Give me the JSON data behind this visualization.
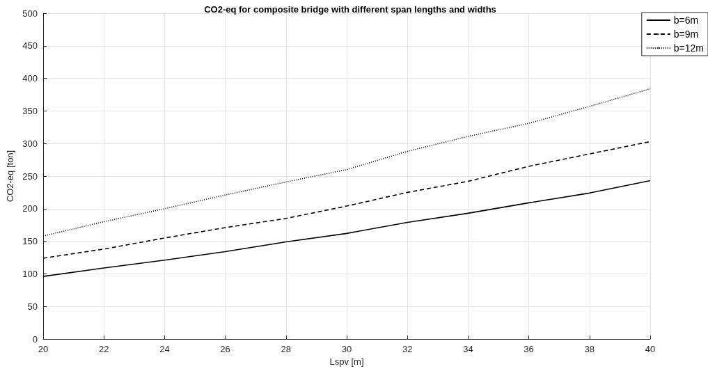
{
  "chart_data": {
    "type": "line",
    "title": "CO2-eq for composite bridge with different span lengths and widths",
    "xlabel": "Lspv [m]",
    "ylabel": "CO2-eq [ton]",
    "x": [
      20,
      22,
      24,
      26,
      28,
      30,
      32,
      34,
      36,
      38,
      40
    ],
    "series": [
      {
        "name": "b=6m",
        "color": "#000000",
        "line_style": "solid",
        "values": [
          96,
          109,
          121,
          134,
          149,
          162,
          179,
          193,
          209,
          224,
          243
        ]
      },
      {
        "name": "b=9m",
        "color": "#000000",
        "line_style": "dashed",
        "values": [
          124,
          138,
          155,
          171,
          185,
          204,
          225,
          242,
          265,
          284,
          303
        ]
      },
      {
        "name": "b=12m",
        "color": "#000000",
        "line_style": "dotted",
        "values": [
          158,
          180,
          200,
          221,
          241,
          260,
          288,
          311,
          331,
          357,
          384
        ]
      }
    ],
    "xlim": [
      20,
      40
    ],
    "xticks": [
      20,
      22,
      24,
      26,
      28,
      30,
      32,
      34,
      36,
      38,
      40
    ],
    "ylim": [
      0,
      500
    ],
    "yticks": [
      0,
      50,
      100,
      150,
      200,
      250,
      300,
      350,
      400,
      450,
      500
    ],
    "grid": true,
    "legend": "top right",
    "marker": "none"
  }
}
